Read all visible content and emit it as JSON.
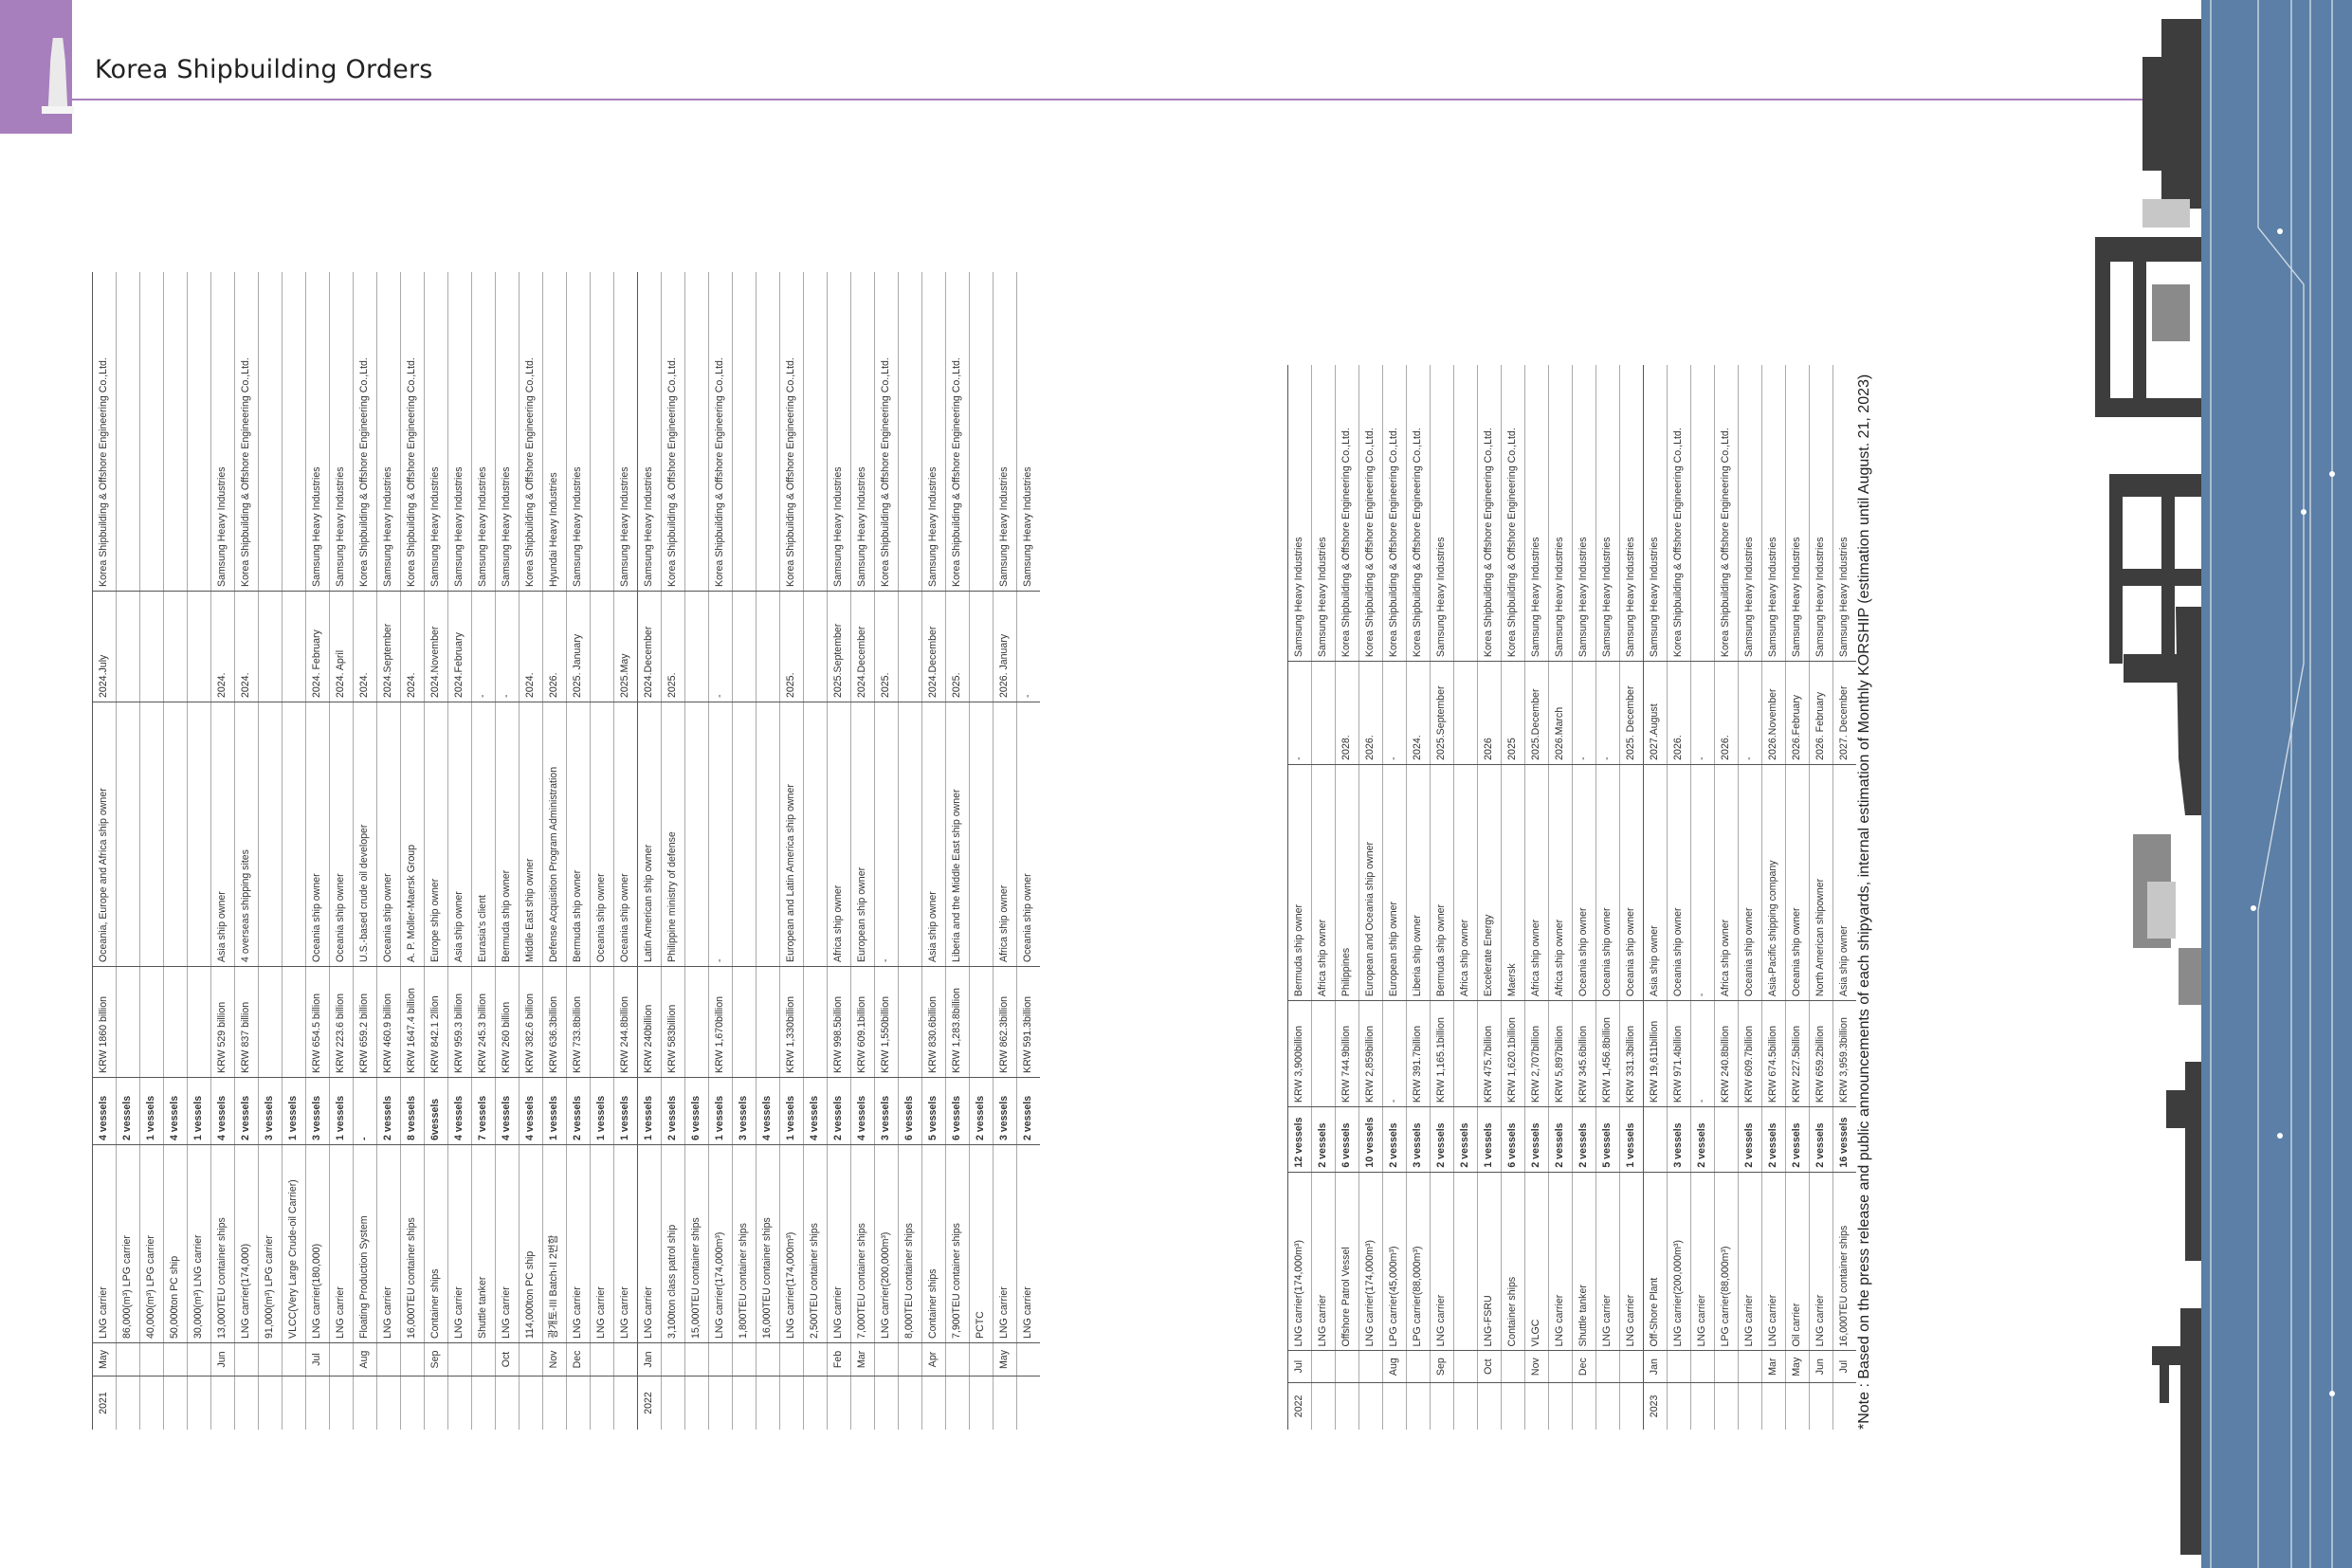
{
  "header": {
    "title": "Korea Shipbuilding Orders"
  },
  "note": "*Note : Based on the press release and public announcements of each shipyards, internal estimation of Monthly KORSHIP (estimation until August. 21, 2023)",
  "left_table": [
    {
      "year": "2021",
      "month": "May",
      "ship": "LNG carrier",
      "qty": "4 vessels",
      "amount": "KRW 1860 billion",
      "owner": "Oceania, Europe and Africa ship owner",
      "delivery": "2024.July",
      "yard": "Korea Shipbuilding & Offshore Engineering Co.,Ltd."
    },
    {
      "year": "",
      "month": "",
      "ship": "86,000(m³) LPG carrier",
      "qty": "2 vessels",
      "amount": "",
      "owner": "",
      "delivery": "",
      "yard": ""
    },
    {
      "year": "",
      "month": "",
      "ship": "40,000(m³) LPG carrier",
      "qty": "1 vessels",
      "amount": "",
      "owner": "",
      "delivery": "",
      "yard": ""
    },
    {
      "year": "",
      "month": "",
      "ship": "50,000ton PC ship",
      "qty": "4 vessels",
      "amount": "",
      "owner": "",
      "delivery": "",
      "yard": ""
    },
    {
      "year": "",
      "month": "",
      "ship": "30,000(m³) LNG carrier",
      "qty": "1 vessels",
      "amount": "",
      "owner": "",
      "delivery": "",
      "yard": ""
    },
    {
      "year": "",
      "month": "Jun",
      "ship": "13,000TEU container ships",
      "qty": "4 vessels",
      "amount": "KRW 529 billion",
      "owner": "Asia ship owner",
      "delivery": "2024.",
      "yard": "Samsung Heavy Industries"
    },
    {
      "year": "",
      "month": "",
      "ship": "LNG carrier(174,000)",
      "qty": "2 vessels",
      "amount": "KRW 837 billion",
      "owner": "4 overseas shipping sites",
      "delivery": "2024.",
      "yard": "Korea Shipbuilding & Offshore Engineering Co.,Ltd."
    },
    {
      "year": "",
      "month": "",
      "ship": "91,000(m³) LPG carrier",
      "qty": "3 vessels",
      "amount": "",
      "owner": "",
      "delivery": "",
      "yard": ""
    },
    {
      "year": "",
      "month": "",
      "ship": "VLCC(Very Large Crude-oil Carrier)",
      "qty": "1 vessels",
      "amount": "",
      "owner": "",
      "delivery": "",
      "yard": ""
    },
    {
      "year": "",
      "month": "Jul",
      "ship": "LNG carrier(180,000)",
      "qty": "3 vessels",
      "amount": "KRW 654.5 billion",
      "owner": "Oceania ship owner",
      "delivery": "2024. February",
      "yard": "Samsung Heavy Industries"
    },
    {
      "year": "",
      "month": "",
      "ship": "LNG carrier",
      "qty": "1 vessels",
      "amount": "KRW 223.6 billion",
      "owner": "Oceania ship owner",
      "delivery": "2024. April",
      "yard": "Samsung Heavy Industries"
    },
    {
      "year": "",
      "month": "Aug",
      "ship": "Floating Production System",
      "qty": "-",
      "amount": "KRW 659.2 billion",
      "owner": "U.S.-based crude oil developer",
      "delivery": "2024.",
      "yard": "Korea Shipbuilding & Offshore Engineering Co.,Ltd."
    },
    {
      "year": "",
      "month": "",
      "ship": "LNG carrier",
      "qty": "2 vessels",
      "amount": "KRW 460.9 billion",
      "owner": "Oceania ship owner",
      "delivery": "2024.September",
      "yard": "Samsung Heavy Industries"
    },
    {
      "year": "",
      "month": "",
      "ship": "16,000TEU container ships",
      "qty": "8 vessels",
      "amount": "KRW 1647.4 billion",
      "owner": "A. P. Moller-Maersk Group",
      "delivery": "2024.",
      "yard": "Korea Shipbuilding & Offshore Engineering Co.,Ltd."
    },
    {
      "year": "",
      "month": "Sep",
      "ship": "Container ships",
      "qty": "6vessels",
      "amount": "KRW 842.1 2llion",
      "owner": "Europe ship owner",
      "delivery": "2024.November",
      "yard": "Samsung Heavy Industries"
    },
    {
      "year": "",
      "month": "",
      "ship": "LNG carrier",
      "qty": "4 vessels",
      "amount": "KRW 959.3 billion",
      "owner": "Asia ship owner",
      "delivery": "2024.February",
      "yard": "Samsung Heavy Industries"
    },
    {
      "year": "",
      "month": "",
      "ship": "Shuttle tanker",
      "qty": "7 vessels",
      "amount": "KRW 245.3 billion",
      "owner": "Eurasia's client",
      "delivery": "-",
      "yard": "Samsung Heavy Industries"
    },
    {
      "year": "",
      "month": "Oct",
      "ship": "LNG carrier",
      "qty": "4 vessels",
      "amount": "KRW 260 billion",
      "owner": "Bermuda ship owner",
      "delivery": "-",
      "yard": "Samsung Heavy Industries"
    },
    {
      "year": "",
      "month": "",
      "ship": "114,000ton PC ship",
      "qty": "4 vessels",
      "amount": "KRW 382.6 billion",
      "owner": "Middle East ship owner",
      "delivery": "2024.",
      "yard": "Korea Shipbuilding & Offshore Engineering Co.,Ltd."
    },
    {
      "year": "",
      "month": "Nov",
      "ship": "광개토-III Batch-II 2번함",
      "qty": "1 vessels",
      "amount": "KRW 636.3billion",
      "owner": "Defense Acquisition Program Administration",
      "delivery": "2026.",
      "yard": "Hyundai Heavy Industries"
    },
    {
      "year": "",
      "month": "Dec",
      "ship": "LNG carrier",
      "qty": "2 vessels",
      "amount": "KRW 733.8billion",
      "owner": "Bermuda ship owner",
      "delivery": "2025. January",
      "yard": "Samsung Heavy Industries"
    },
    {
      "year": "",
      "month": "",
      "ship": "LNG carrier",
      "qty": "1 vessels",
      "amount": "",
      "owner": "Oceania ship owner",
      "delivery": "",
      "yard": ""
    },
    {
      "year": "",
      "month": "",
      "ship": "LNG carrier",
      "qty": "1 vessels",
      "amount": "KRW 244.8billion",
      "owner": "Oceania ship owner",
      "delivery": "2025.May",
      "yard": "Samsung Heavy Industries"
    },
    {
      "year": "2022",
      "month": "Jan",
      "ship": "LNG carrier",
      "qty": "1 vessels",
      "amount": "KRW 240billion",
      "owner": "Latin American ship owner",
      "delivery": "2024.December",
      "yard": "Samsung Heavy Industries"
    },
    {
      "year": "",
      "month": "",
      "ship": "3,100ton class patrol ship",
      "qty": "2 vessels",
      "amount": "KRW 583billion",
      "owner": "Philippine ministry of defense",
      "delivery": "2025.",
      "yard": "Korea Shipbuilding & Offshore Engineering Co.,Ltd."
    },
    {
      "year": "",
      "month": "",
      "ship": "15,000TEU container ships",
      "qty": "6 vessels",
      "amount": "",
      "owner": "",
      "delivery": "",
      "yard": ""
    },
    {
      "year": "",
      "month": "",
      "ship": "LNG carrier(174,000m³)",
      "qty": "1 vessels",
      "amount": "KRW 1,670billion",
      "owner": "-",
      "delivery": "-",
      "yard": "Korea Shipbuilding & Offshore Engineering Co.,Ltd."
    },
    {
      "year": "",
      "month": "",
      "ship": "1,800TEU container ships",
      "qty": "3 vessels",
      "amount": "",
      "owner": "",
      "delivery": "",
      "yard": ""
    },
    {
      "year": "",
      "month": "",
      "ship": "16,000TEU container ships",
      "qty": "4 vessels",
      "amount": "",
      "owner": "",
      "delivery": "",
      "yard": ""
    },
    {
      "year": "",
      "month": "",
      "ship": "LNG carrier(174,000m³)",
      "qty": "1 vessels",
      "amount": "KRW 1,330billion",
      "owner": "European and Latin America ship owner",
      "delivery": "2025.",
      "yard": "Korea Shipbuilding & Offshore Engineering Co.,Ltd."
    },
    {
      "year": "",
      "month": "",
      "ship": "2,500TEU container ships",
      "qty": "4 vessels",
      "amount": "",
      "owner": "",
      "delivery": "",
      "yard": ""
    },
    {
      "year": "",
      "month": "Feb",
      "ship": "LNG carrier",
      "qty": "2 vessels",
      "amount": "KRW 998.5billion",
      "owner": "Africa ship owner",
      "delivery": "2025.September",
      "yard": "Samsung Heavy Industries"
    },
    {
      "year": "",
      "month": "Mar",
      "ship": "7,000TEU container ships",
      "qty": "4 vessels",
      "amount": "KRW 609.1billion",
      "owner": "European ship owner",
      "delivery": "2024.December",
      "yard": "Samsung Heavy Industries"
    },
    {
      "year": "",
      "month": "",
      "ship": "LNG carrier(200,000m³)",
      "qty": "3 vessels",
      "amount": "KRW 1,550billion",
      "owner": "-",
      "delivery": "2025.",
      "yard": "Korea Shipbuilding & Offshore Engineering Co.,Ltd."
    },
    {
      "year": "",
      "month": "",
      "ship": "8,000TEU container ships",
      "qty": "6 vessels",
      "amount": "",
      "owner": "",
      "delivery": "",
      "yard": ""
    },
    {
      "year": "",
      "month": "Apr",
      "ship": "Container ships",
      "qty": "5 vessels",
      "amount": "KRW 830.6billion",
      "owner": "Asia ship owner",
      "delivery": "2024.December",
      "yard": "Samsung Heavy Industries"
    },
    {
      "year": "",
      "month": "",
      "ship": "7,900TEU container ships",
      "qty": "6 vessels",
      "amount": "KRW 1,283.8billion",
      "owner": "Liberia and the Middle East ship owner",
      "delivery": "2025.",
      "yard": "Korea Shipbuilding & Offshore Engineering Co.,Ltd."
    },
    {
      "year": "",
      "month": "",
      "ship": "PCTC",
      "qty": "2 vessels",
      "amount": "",
      "owner": "",
      "delivery": "",
      "yard": ""
    },
    {
      "year": "",
      "month": "May",
      "ship": "LNG carrier",
      "qty": "3 vessels",
      "amount": "KRW 862.3billion",
      "owner": "Africa ship owner",
      "delivery": "2026. January",
      "yard": "Samsung Heavy Industries"
    },
    {
      "year": "",
      "month": "",
      "ship": "LNG carrier",
      "qty": "2 vessels",
      "amount": "KRW 591.3billion",
      "owner": "Oceania ship owner",
      "delivery": "-",
      "yard": "Samsung Heavy Industries"
    }
  ],
  "right_table": [
    {
      "year": "2022",
      "month": "Jul",
      "ship": "LNG carrier(174,000m³)",
      "qty": "12 vessels",
      "amount": "KRW 3,900billion",
      "owner": "Bermuda ship owner",
      "delivery": "-",
      "yard": "Samsung Heavy Industries"
    },
    {
      "year": "",
      "month": "",
      "ship": "LNG carrier",
      "qty": "2 vessels",
      "amount": "",
      "owner": "Africa ship owner",
      "delivery": "",
      "yard": "Samsung Heavy Industries"
    },
    {
      "year": "",
      "month": "",
      "ship": "Offshore Patrol Vessel",
      "qty": "6 vessels",
      "amount": "KRW 744.9billion",
      "owner": "Philippines",
      "delivery": "2028.",
      "yard": "Korea Shipbuilding & Offshore Engineering Co.,Ltd."
    },
    {
      "year": "",
      "month": "",
      "ship": "LNG carrier(174,000m³)",
      "qty": "10 vessels",
      "amount": "KRW 2,859billion",
      "owner": "European and Oceania ship owner",
      "delivery": "2026.",
      "yard": "Korea Shipbuilding & Offshore Engineering Co.,Ltd."
    },
    {
      "year": "",
      "month": "Aug",
      "ship": "LPG carrier(45,000m³)",
      "qty": "2 vessels",
      "amount": "-",
      "owner": "European ship owner",
      "delivery": "-",
      "yard": "Korea Shipbuilding & Offshore Engineering Co.,Ltd."
    },
    {
      "year": "",
      "month": "",
      "ship": "LPG carrier(88,000m³)",
      "qty": "3 vessels",
      "amount": "KRW 391.7billion",
      "owner": "Liberia ship owner",
      "delivery": "2024.",
      "yard": "Korea Shipbuilding & Offshore Engineering Co.,Ltd."
    },
    {
      "year": "",
      "month": "Sep",
      "ship": "LNG carrier",
      "qty": "2 vessels",
      "amount": "KRW 1,165.1billion",
      "owner": "Bermuda ship owner",
      "delivery": "2025.September",
      "yard": "Samsung Heavy Industries"
    },
    {
      "year": "",
      "month": "",
      "ship": "",
      "qty": "2 vessels",
      "amount": "",
      "owner": "Africa ship owner",
      "delivery": "",
      "yard": ""
    },
    {
      "year": "",
      "month": "Oct",
      "ship": "LNG-FSRU",
      "qty": "1 vessels",
      "amount": "KRW 475.7billion",
      "owner": "Excelerate Energy",
      "delivery": "2026",
      "yard": "Korea Shipbuilding & Offshore Engineering Co.,Ltd."
    },
    {
      "year": "",
      "month": "",
      "ship": "Container ships",
      "qty": "6 vessels",
      "amount": "KRW 1,620.1billion",
      "owner": "Maersk",
      "delivery": "2025",
      "yard": "Korea Shipbuilding & Offshore Engineering Co.,Ltd."
    },
    {
      "year": "",
      "month": "Nov",
      "ship": "VLGC",
      "qty": "2 vessels",
      "amount": "KRW 2,707billion",
      "owner": "Africa ship owner",
      "delivery": "2025.December",
      "yard": "Samsung Heavy Industries"
    },
    {
      "year": "",
      "month": "",
      "ship": "LNG carrier",
      "qty": "2 vessels",
      "amount": "KRW 5,897billion",
      "owner": "Africa ship owner",
      "delivery": "2026.March",
      "yard": "Samsung Heavy Industries"
    },
    {
      "year": "",
      "month": "Dec",
      "ship": "Shuttle tanker",
      "qty": "2 vessels",
      "amount": "KRW 345.6billion",
      "owner": "Oceania ship owner",
      "delivery": "-",
      "yard": "Samsung Heavy Industries"
    },
    {
      "year": "",
      "month": "",
      "ship": "LNG carrier",
      "qty": "5 vessels",
      "amount": "KRW 1,456.8billion",
      "owner": "Oceania ship owner",
      "delivery": "-",
      "yard": "Samsung Heavy Industries"
    },
    {
      "year": "",
      "month": "",
      "ship": "LNG carrier",
      "qty": "1 vessels",
      "amount": "KRW 331.3billion",
      "owner": "Oceania ship owner",
      "delivery": "2025. December",
      "yard": "Samsung Heavy Industries"
    },
    {
      "year": "2023",
      "month": "Jan",
      "ship": "Off-Shore Plant",
      "qty": "",
      "amount": "KRW 19,611billion",
      "owner": "Asia ship owner",
      "delivery": "2027.August",
      "yard": "Samsung Heavy Industries"
    },
    {
      "year": "",
      "month": "",
      "ship": "LNG carrier(200,000m³)",
      "qty": "3 vessels",
      "amount": "KRW 971.4billion",
      "owner": "Oceania ship owner",
      "delivery": "2026.",
      "yard": "Korea Shipbuilding & Offshore Engineering Co.,Ltd."
    },
    {
      "year": "",
      "month": "",
      "ship": "LNG carrier",
      "qty": "2 vessels",
      "amount": "-",
      "owner": "-",
      "delivery": "-",
      "yard": ""
    },
    {
      "year": "",
      "month": "",
      "ship": "LPG carrier(88,000m³)",
      "qty": "",
      "amount": "KRW 240.8billion",
      "owner": "Africa ship owner",
      "delivery": "2026.",
      "yard": "Korea Shipbuilding & Offshore Engineering Co.,Ltd."
    },
    {
      "year": "",
      "month": "",
      "ship": "LNG carrier",
      "qty": "2 vessels",
      "amount": "KRW 609.7billion",
      "owner": "Oceania ship owner",
      "delivery": "-",
      "yard": "Samsung Heavy Industries"
    },
    {
      "year": "",
      "month": "Mar",
      "ship": "LNG carrier",
      "qty": "2 vessels",
      "amount": "KRW 674.5billion",
      "owner": "Asia-Pacific shipping company",
      "delivery": "2026.November",
      "yard": "Samsung Heavy Industries"
    },
    {
      "year": "",
      "month": "May",
      "ship": "Oil carrier",
      "qty": "2 vessels",
      "amount": "KRW 227.5billion",
      "owner": "Oceania ship owner",
      "delivery": "2026.February",
      "yard": "Samsung Heavy Industries"
    },
    {
      "year": "",
      "month": "Jun",
      "ship": "LNG carrier",
      "qty": "2 vessels",
      "amount": "KRW 659.2billion",
      "owner": "North American shipowner",
      "delivery": "2026. February",
      "yard": "Samsung Heavy Industries"
    },
    {
      "year": "",
      "month": "Jul",
      "ship": "16,000TEU container ships",
      "qty": "16 vessels",
      "amount": "KRW 3,959.3billion",
      "owner": "Asia ship owner",
      "delivery": "2027. December",
      "yard": "Samsung Heavy Industries"
    }
  ],
  "colors": {
    "accent": "#a87fbd",
    "sea": "#5b7fa6",
    "silhouette": "#3d3d3d"
  }
}
